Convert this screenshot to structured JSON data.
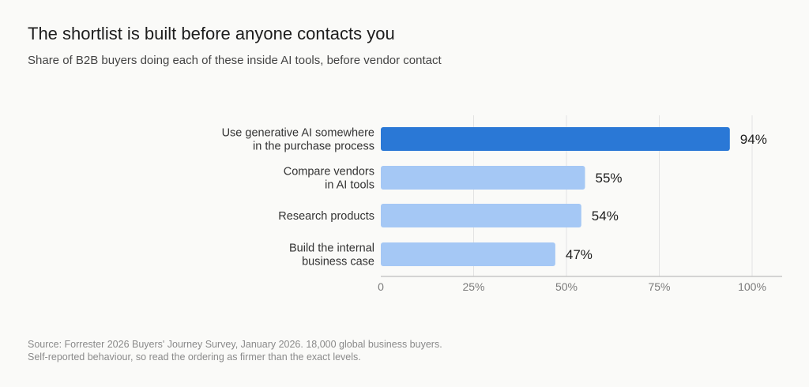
{
  "header": {
    "title": "The shortlist is built before anyone contacts you",
    "subtitle": "Share of B2B buyers doing each of these inside AI tools, before vendor contact"
  },
  "chart_data": {
    "type": "bar",
    "orientation": "horizontal",
    "title": "The shortlist is built before anyone contacts you",
    "subtitle": "Share of B2B buyers doing each of these inside AI tools, before vendor contact",
    "categories": [
      [
        "Use generative AI somewhere",
        "in the purchase process"
      ],
      [
        "Compare vendors",
        "in AI tools"
      ],
      [
        "Research products"
      ],
      [
        "Build the internal",
        "business case"
      ]
    ],
    "values": [
      94,
      55,
      54,
      47
    ],
    "value_labels": [
      "94%",
      "55%",
      "54%",
      "47%"
    ],
    "xlim": [
      0,
      100
    ],
    "xticks": [
      0,
      25,
      50,
      75,
      100
    ],
    "xtick_labels": [
      "0",
      "25%",
      "50%",
      "75%",
      "100%"
    ],
    "xlabel": "",
    "ylabel": "",
    "grid": "vertical",
    "highlight_color": "#2a78d6",
    "bar_color": "#a5c8f5"
  },
  "footer": {
    "source_lines": [
      "Source: Forrester 2026 Buyers' Journey Survey, January 2026. 18,000 global business buyers.",
      "Self-reported behaviour, so read the ordering as firmer than the exact levels."
    ]
  }
}
